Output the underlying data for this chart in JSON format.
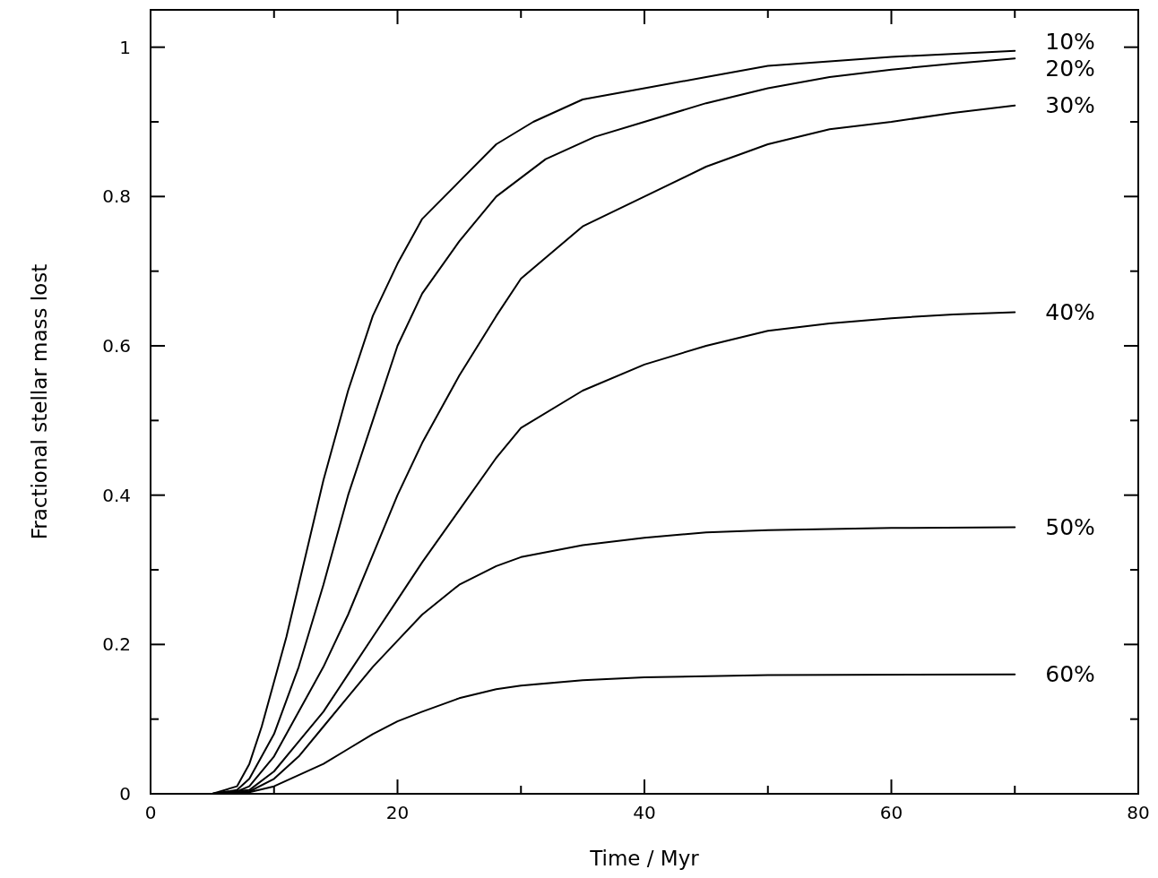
{
  "chart_data": {
    "type": "line",
    "xlabel": "Time / Myr",
    "ylabel": "Fractional stellar mass lost",
    "xlim": [
      0,
      80
    ],
    "xticks": [
      0,
      {
        "value": 10,
        "label": null
      },
      20,
      {
        "value": 30,
        "label": null
      },
      40,
      {
        "value": 50,
        "label": null
      },
      60,
      {
        "value": 70,
        "label": null
      },
      80
    ],
    "ylim": [
      0,
      1.05
    ],
    "yticks": [
      0,
      {
        "value": 0.1,
        "label": null
      },
      0.2,
      {
        "value": 0.3,
        "label": null
      },
      0.4,
      {
        "value": 0.5,
        "label": null
      },
      0.6,
      {
        "value": 0.7,
        "label": null
      },
      0.8,
      {
        "value": 0.9,
        "label": null
      },
      1
    ],
    "grid": false,
    "marker": "none",
    "line_style": "solid",
    "series": [
      {
        "name": "10%",
        "color": "#000000",
        "x": [
          5,
          7,
          8,
          9,
          10,
          11,
          12,
          14,
          16,
          18,
          20,
          22,
          25,
          28,
          31,
          35,
          40,
          45,
          50,
          60,
          70
        ],
        "values": [
          0,
          0.01,
          0.04,
          0.09,
          0.15,
          0.21,
          0.28,
          0.42,
          0.54,
          0.64,
          0.71,
          0.77,
          0.82,
          0.87,
          0.9,
          0.93,
          0.945,
          0.96,
          0.975,
          0.987,
          0.995
        ]
      },
      {
        "name": "20%",
        "color": "#000000",
        "x": [
          5,
          7,
          8,
          10,
          12,
          14,
          16,
          18,
          20,
          22,
          25,
          28,
          32,
          36,
          40,
          45,
          50,
          55,
          60,
          65,
          70
        ],
        "values": [
          0,
          0.005,
          0.02,
          0.08,
          0.17,
          0.28,
          0.4,
          0.5,
          0.6,
          0.67,
          0.74,
          0.8,
          0.85,
          0.88,
          0.9,
          0.925,
          0.945,
          0.96,
          0.97,
          0.978,
          0.985
        ]
      },
      {
        "name": "30%",
        "color": "#000000",
        "x": [
          5,
          7,
          8,
          10,
          12,
          14,
          16,
          18,
          20,
          22,
          25,
          28,
          30,
          35,
          40,
          45,
          50,
          55,
          60,
          65,
          70
        ],
        "values": [
          0,
          0.003,
          0.01,
          0.05,
          0.11,
          0.17,
          0.24,
          0.32,
          0.4,
          0.47,
          0.56,
          0.64,
          0.69,
          0.76,
          0.8,
          0.84,
          0.87,
          0.89,
          0.9,
          0.912,
          0.922
        ]
      },
      {
        "name": "40%",
        "color": "#000000",
        "x": [
          5,
          8,
          10,
          12,
          14,
          16,
          18,
          20,
          22,
          25,
          28,
          30,
          35,
          40,
          45,
          50,
          55,
          60,
          65,
          70
        ],
        "values": [
          0,
          0.005,
          0.03,
          0.07,
          0.11,
          0.16,
          0.21,
          0.26,
          0.31,
          0.38,
          0.45,
          0.49,
          0.54,
          0.575,
          0.6,
          0.62,
          0.63,
          0.637,
          0.642,
          0.645
        ]
      },
      {
        "name": "50%",
        "color": "#000000",
        "x": [
          5,
          8,
          10,
          12,
          14,
          16,
          18,
          20,
          22,
          25,
          28,
          30,
          35,
          40,
          45,
          50,
          60,
          70
        ],
        "values": [
          0,
          0.003,
          0.02,
          0.05,
          0.09,
          0.13,
          0.17,
          0.205,
          0.24,
          0.28,
          0.305,
          0.317,
          0.333,
          0.343,
          0.35,
          0.353,
          0.356,
          0.357
        ]
      },
      {
        "name": "60%",
        "color": "#000000",
        "x": [
          6,
          8,
          10,
          12,
          14,
          16,
          18,
          20,
          22,
          25,
          28,
          30,
          35,
          40,
          50,
          70
        ],
        "values": [
          0,
          0.002,
          0.01,
          0.025,
          0.04,
          0.06,
          0.08,
          0.097,
          0.11,
          0.128,
          0.14,
          0.145,
          0.152,
          0.156,
          0.159,
          0.16
        ]
      }
    ]
  }
}
